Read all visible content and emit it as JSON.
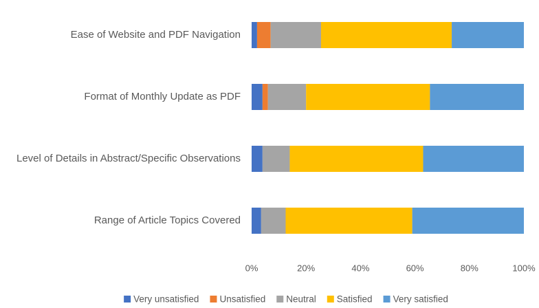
{
  "chart_data": {
    "type": "stacked_barh",
    "categories": [
      "Ease of Website and PDF Navigation",
      "Format of Monthly Update as PDF",
      "Level of Details in Abstract/Specific Observations",
      "Range of Article Topics Covered"
    ],
    "series": [
      {
        "name": "Very unsatisfied",
        "color": "#4472c4",
        "values": [
          2,
          4,
          4,
          3.5
        ]
      },
      {
        "name": "Unsatisfied",
        "color": "#ed7d31",
        "values": [
          5,
          2,
          0,
          0
        ]
      },
      {
        "name": "Neutral",
        "color": "#a5a5a5",
        "values": [
          18.5,
          14,
          10,
          9
        ]
      },
      {
        "name": "Satisfied",
        "color": "#ffc000",
        "values": [
          48,
          45.5,
          49,
          46.5
        ]
      },
      {
        "name": "Very satisfied",
        "color": "#5b9bd5",
        "values": [
          26.5,
          34.5,
          37,
          41
        ]
      }
    ],
    "xlim": [
      0,
      100
    ],
    "xticks": [
      {
        "value": 0,
        "label": "0%"
      },
      {
        "value": 20,
        "label": "20%"
      },
      {
        "value": 40,
        "label": "40%"
      },
      {
        "value": 60,
        "label": "60%"
      },
      {
        "value": 80,
        "label": "80%"
      },
      {
        "value": 100,
        "label": "100%"
      }
    ],
    "legend": "bottom"
  }
}
